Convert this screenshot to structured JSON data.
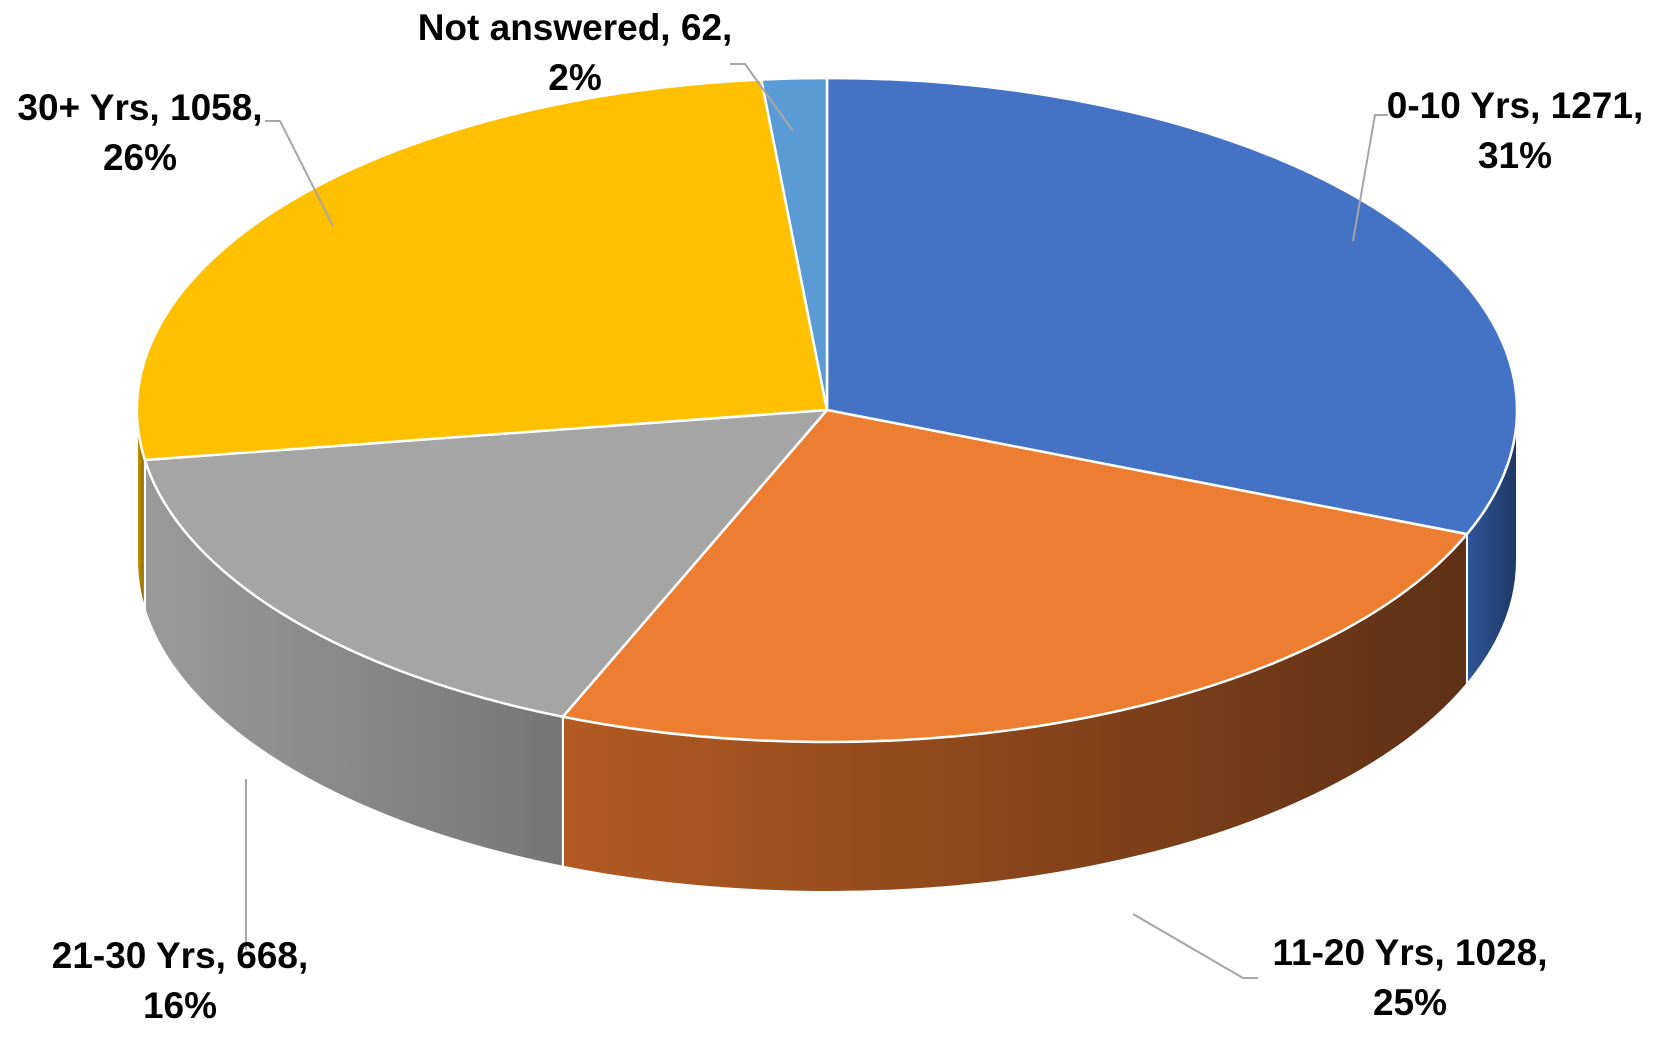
{
  "chart_data": {
    "type": "pie",
    "style": "3d",
    "slices": [
      {
        "label": "0-10 Yrs",
        "value": 1271,
        "percent": "31%",
        "color": "#4472c4",
        "side_light": "#2f5597",
        "side_dark": "#1f3864",
        "label_line1": "0-10 Yrs, 1271,",
        "label_line2": "31%"
      },
      {
        "label": "11-20 Yrs",
        "value": 1028,
        "percent": "25%",
        "color": "#ed7d31",
        "side_light": "#b35a22",
        "side_dark": "#5e3015",
        "label_line1": "11-20 Yrs, 1028,",
        "label_line2": "25%"
      },
      {
        "label": "21-30 Yrs",
        "value": 668,
        "percent": "16%",
        "color": "#a5a5a5",
        "side_light": "#9a9a9a",
        "side_dark": "#767676",
        "label_line1": "21-30 Yrs, 668,",
        "label_line2": "16%"
      },
      {
        "label": "30+ Yrs",
        "value": 1058,
        "percent": "26%",
        "color": "#ffc000",
        "side_light": "#c99700",
        "side_dark": "#8a6700",
        "label_line1": "30+ Yrs, 1058,",
        "label_line2": "26%"
      },
      {
        "label": "Not answered",
        "value": 62,
        "percent": "2%",
        "color": "#5b9bd5",
        "side_light": "#41719c",
        "side_dark": "#2e5477",
        "label_line1": "Not answered, 62,",
        "label_line2": "2%"
      }
    ],
    "start_angle_deg": 0,
    "direction": "clockwise",
    "legend": "none",
    "data_labels": "category, value, percentage"
  }
}
